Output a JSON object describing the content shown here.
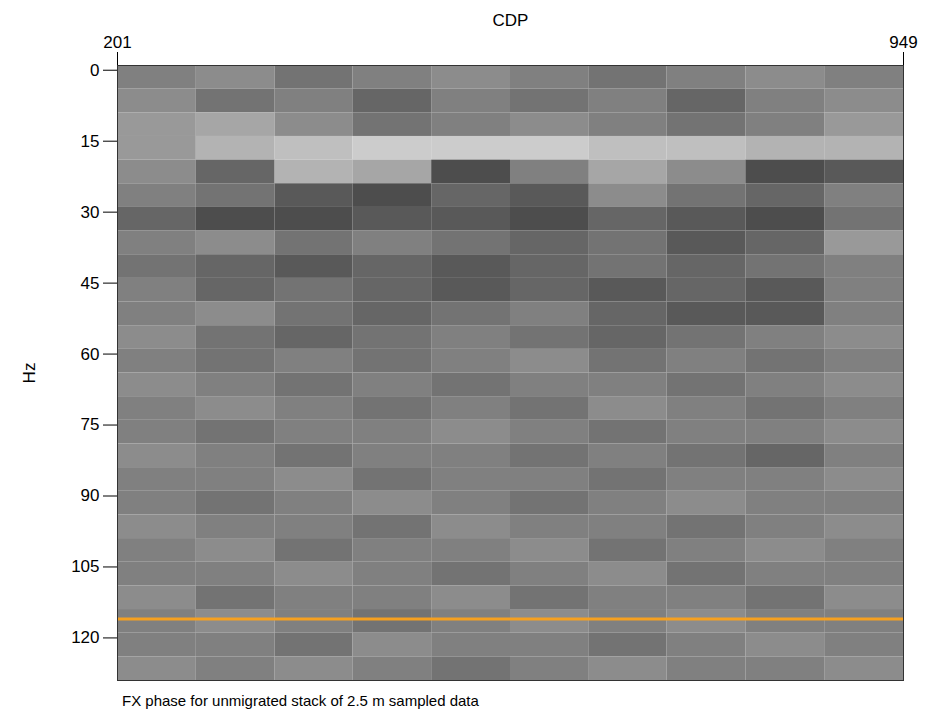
{
  "chart_data": {
    "type": "heatmap",
    "caption": "FX phase for unmigrated stack of 2.5 m sampled data",
    "x_label": "CDP",
    "y_label": "Hz",
    "xlim": [
      201,
      949
    ],
    "xticks": [
      201,
      949
    ],
    "ylim": [
      -1,
      129
    ],
    "yticks": [
      0,
      15,
      30,
      45,
      60,
      75,
      90,
      105,
      120
    ],
    "cells": {
      "range": [
        0,
        1
      ],
      "x_edges": [
        201,
        276,
        351,
        425,
        500,
        575,
        650,
        724,
        799,
        874,
        949
      ],
      "y_edges": [
        -1,
        4,
        9,
        14,
        19,
        24,
        29,
        34,
        39,
        44,
        49,
        54,
        59,
        64,
        69,
        74,
        79,
        84,
        89,
        94,
        99,
        104,
        109,
        114,
        119,
        124,
        129
      ],
      "values": [
        [
          0.5,
          0.55,
          0.45,
          0.5,
          0.55,
          0.5,
          0.45,
          0.5,
          0.55,
          0.5
        ],
        [
          0.55,
          0.45,
          0.5,
          0.4,
          0.5,
          0.45,
          0.5,
          0.4,
          0.5,
          0.55
        ],
        [
          0.6,
          0.65,
          0.55,
          0.45,
          0.5,
          0.55,
          0.5,
          0.45,
          0.5,
          0.6
        ],
        [
          0.6,
          0.7,
          0.75,
          0.8,
          0.8,
          0.8,
          0.75,
          0.75,
          0.7,
          0.7
        ],
        [
          0.55,
          0.4,
          0.7,
          0.65,
          0.3,
          0.5,
          0.65,
          0.55,
          0.3,
          0.35
        ],
        [
          0.5,
          0.45,
          0.35,
          0.3,
          0.4,
          0.35,
          0.55,
          0.45,
          0.4,
          0.5
        ],
        [
          0.4,
          0.3,
          0.3,
          0.35,
          0.35,
          0.3,
          0.4,
          0.35,
          0.3,
          0.45
        ],
        [
          0.5,
          0.55,
          0.45,
          0.5,
          0.45,
          0.4,
          0.45,
          0.35,
          0.4,
          0.6
        ],
        [
          0.45,
          0.4,
          0.35,
          0.4,
          0.35,
          0.4,
          0.45,
          0.4,
          0.45,
          0.5
        ],
        [
          0.5,
          0.4,
          0.45,
          0.4,
          0.35,
          0.4,
          0.35,
          0.4,
          0.35,
          0.5
        ],
        [
          0.5,
          0.55,
          0.45,
          0.4,
          0.45,
          0.5,
          0.4,
          0.35,
          0.35,
          0.5
        ],
        [
          0.55,
          0.45,
          0.4,
          0.45,
          0.5,
          0.45,
          0.4,
          0.45,
          0.5,
          0.55
        ],
        [
          0.5,
          0.45,
          0.5,
          0.45,
          0.5,
          0.55,
          0.45,
          0.5,
          0.45,
          0.5
        ],
        [
          0.55,
          0.5,
          0.45,
          0.5,
          0.45,
          0.5,
          0.5,
          0.45,
          0.5,
          0.55
        ],
        [
          0.5,
          0.55,
          0.5,
          0.45,
          0.5,
          0.45,
          0.55,
          0.5,
          0.45,
          0.5
        ],
        [
          0.5,
          0.45,
          0.5,
          0.5,
          0.55,
          0.5,
          0.45,
          0.5,
          0.5,
          0.55
        ],
        [
          0.55,
          0.5,
          0.45,
          0.5,
          0.5,
          0.45,
          0.5,
          0.45,
          0.4,
          0.5
        ],
        [
          0.5,
          0.5,
          0.55,
          0.45,
          0.5,
          0.5,
          0.45,
          0.5,
          0.5,
          0.55
        ],
        [
          0.5,
          0.45,
          0.5,
          0.55,
          0.5,
          0.45,
          0.5,
          0.55,
          0.5,
          0.5
        ],
        [
          0.55,
          0.5,
          0.5,
          0.45,
          0.55,
          0.5,
          0.5,
          0.45,
          0.5,
          0.55
        ],
        [
          0.5,
          0.55,
          0.45,
          0.5,
          0.5,
          0.55,
          0.45,
          0.5,
          0.55,
          0.5
        ],
        [
          0.5,
          0.5,
          0.55,
          0.5,
          0.45,
          0.5,
          0.55,
          0.45,
          0.5,
          0.5
        ],
        [
          0.55,
          0.45,
          0.5,
          0.5,
          0.55,
          0.45,
          0.5,
          0.5,
          0.45,
          0.55
        ],
        [
          0.5,
          0.55,
          0.5,
          0.45,
          0.5,
          0.55,
          0.5,
          0.55,
          0.5,
          0.5
        ],
        [
          0.5,
          0.5,
          0.45,
          0.55,
          0.5,
          0.5,
          0.45,
          0.5,
          0.55,
          0.5
        ],
        [
          0.55,
          0.5,
          0.55,
          0.5,
          0.45,
          0.5,
          0.55,
          0.5,
          0.5,
          0.55
        ]
      ]
    },
    "lines": [
      {
        "y": 116,
        "color": "#f5a020"
      }
    ]
  }
}
